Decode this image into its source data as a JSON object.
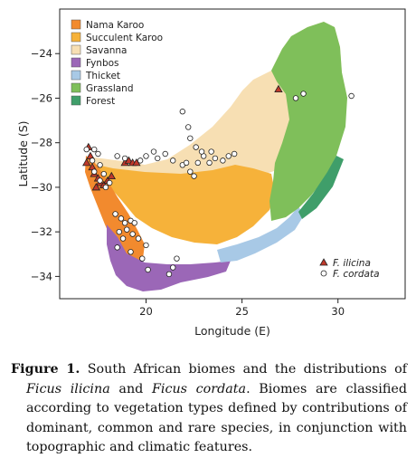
{
  "figure": {
    "xlabel": "Longitude (E)",
    "ylabel": "Latitude (S)",
    "x_ticks": [
      "20",
      "25",
      "30"
    ],
    "y_ticks": [
      "−24",
      "−26",
      "−28",
      "−30",
      "−32",
      "−34"
    ],
    "colors": {
      "nama_karoo": "#f28a2e",
      "succulent_karoo": "#f6b23a",
      "savanna": "#f7dfb3",
      "fynbos": "#9b67b7",
      "thicket": "#a8c9e6",
      "grassland": "#7fbf5a",
      "forest": "#3f9e6a",
      "ficus_ilicina": "#c0392b",
      "ficus_cordata": "#ffffff"
    },
    "legend_biomes": [
      {
        "label": "Nama Karoo",
        "color_key": "nama_karoo"
      },
      {
        "label": "Succulent Karoo",
        "color_key": "succulent_karoo"
      },
      {
        "label": "Savanna",
        "color_key": "savanna"
      },
      {
        "label": "Fynbos",
        "color_key": "fynbos"
      },
      {
        "label": "Thicket",
        "color_key": "thicket"
      },
      {
        "label": "Grassland",
        "color_key": "grassland"
      },
      {
        "label": "Forest",
        "color_key": "forest"
      }
    ],
    "legend_species": [
      {
        "label": "F. ilicina",
        "marker": "triangle"
      },
      {
        "label": "F. cordata",
        "marker": "circle"
      }
    ]
  },
  "chart_data": {
    "type": "scatter",
    "xlim": [
      15.5,
      33.5
    ],
    "ylim": [
      -35,
      -22
    ],
    "grid": false,
    "legend_placement": "top-left",
    "series": [
      {
        "name": "F. ilicina",
        "marker": "triangle",
        "points": [
          [
            17.0,
            -28.2
          ],
          [
            17.1,
            -28.6
          ],
          [
            16.9,
            -28.9
          ],
          [
            17.2,
            -29.1
          ],
          [
            17.3,
            -29.4
          ],
          [
            17.5,
            -29.6
          ],
          [
            17.6,
            -29.8
          ],
          [
            17.4,
            -30.0
          ],
          [
            17.8,
            -29.9
          ],
          [
            18.0,
            -29.7
          ],
          [
            18.2,
            -29.5
          ],
          [
            18.9,
            -28.9
          ],
          [
            19.1,
            -28.8
          ],
          [
            19.3,
            -28.9
          ],
          [
            19.5,
            -28.9
          ],
          [
            26.9,
            -25.6
          ]
        ]
      },
      {
        "name": "F. cordata",
        "marker": "circle",
        "points": [
          [
            16.9,
            -28.3
          ],
          [
            17.3,
            -28.3
          ],
          [
            17.5,
            -28.5
          ],
          [
            17.2,
            -28.8
          ],
          [
            17.6,
            -29.0
          ],
          [
            17.3,
            -29.3
          ],
          [
            17.8,
            -29.4
          ],
          [
            17.6,
            -29.7
          ],
          [
            18.1,
            -29.8
          ],
          [
            17.9,
            -30.0
          ],
          [
            18.5,
            -28.6
          ],
          [
            18.9,
            -28.7
          ],
          [
            19.7,
            -28.8
          ],
          [
            20.0,
            -28.6
          ],
          [
            20.4,
            -28.4
          ],
          [
            20.6,
            -28.7
          ],
          [
            21.0,
            -28.5
          ],
          [
            21.4,
            -28.8
          ],
          [
            21.9,
            -29.0
          ],
          [
            22.1,
            -28.9
          ],
          [
            22.3,
            -29.3
          ],
          [
            22.5,
            -29.5
          ],
          [
            22.7,
            -28.9
          ],
          [
            23.0,
            -28.6
          ],
          [
            23.3,
            -28.9
          ],
          [
            23.6,
            -28.7
          ],
          [
            24.0,
            -28.8
          ],
          [
            24.3,
            -28.6
          ],
          [
            24.6,
            -28.5
          ],
          [
            21.9,
            -26.6
          ],
          [
            22.2,
            -27.3
          ],
          [
            22.3,
            -27.8
          ],
          [
            22.6,
            -28.2
          ],
          [
            22.9,
            -28.4
          ],
          [
            23.4,
            -28.4
          ],
          [
            18.4,
            -31.2
          ],
          [
            18.7,
            -31.4
          ],
          [
            18.9,
            -31.6
          ],
          [
            19.2,
            -31.5
          ],
          [
            19.4,
            -31.6
          ],
          [
            19.0,
            -31.9
          ],
          [
            18.6,
            -32.0
          ],
          [
            19.3,
            -32.1
          ],
          [
            18.8,
            -32.3
          ],
          [
            19.6,
            -32.3
          ],
          [
            20.0,
            -32.6
          ],
          [
            18.5,
            -32.7
          ],
          [
            19.2,
            -32.9
          ],
          [
            19.8,
            -33.2
          ],
          [
            20.1,
            -33.7
          ],
          [
            21.6,
            -33.2
          ],
          [
            21.4,
            -33.6
          ],
          [
            21.2,
            -33.9
          ],
          [
            27.8,
            -26.0
          ],
          [
            28.2,
            -25.8
          ],
          [
            30.7,
            -25.9
          ]
        ]
      }
    ]
  },
  "caption": {
    "label": "Figure 1.",
    "text_a": " South African biomes and the distributions of ",
    "species_a": "Ficus ilicina",
    "text_b": " and ",
    "species_b": "Ficus cordata",
    "text_c": ". Biomes are classified according to vegetation types defined by contributions of dominant, common and rare species, in conjunction with topographic and climatic features."
  }
}
